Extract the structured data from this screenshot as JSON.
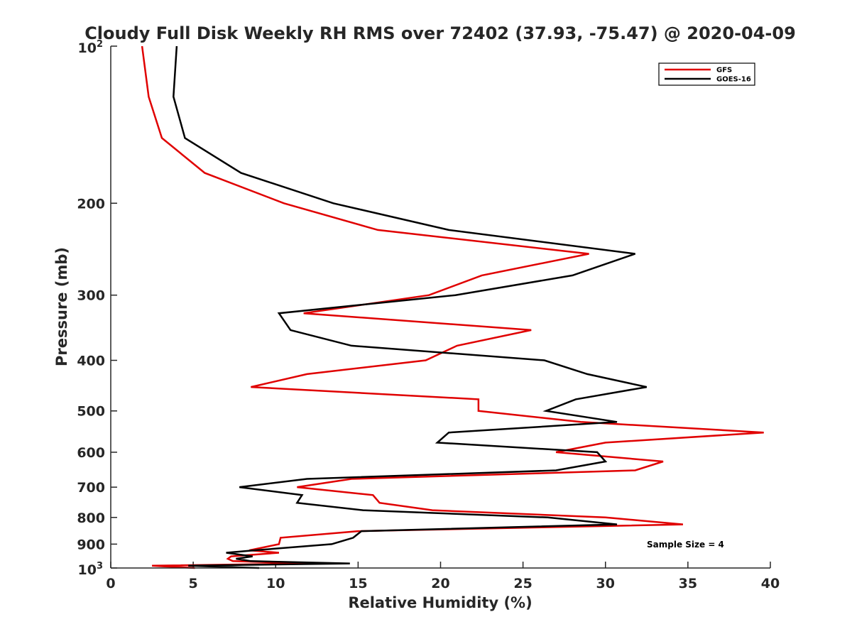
{
  "chart_data": {
    "type": "line",
    "title": "Cloudy Full Disk Weekly RH RMS over 72402 (37.93, -75.47) @ 2020-04-09",
    "xlabel": "Relative Humidity (%)",
    "ylabel": "Pressure (mb)",
    "xlim": [
      0,
      40
    ],
    "ylim": [
      100,
      1000
    ],
    "yscale": "log",
    "y_reversed": true,
    "grid": false,
    "legend_position": "top-right",
    "x_ticks": [
      "0",
      "5",
      "10",
      "15",
      "20",
      "25",
      "30",
      "35",
      "40"
    ],
    "y_ticks": [
      {
        "value": 100,
        "base": "10",
        "exp": "2"
      },
      {
        "value": 200,
        "label": "200"
      },
      {
        "value": 300,
        "label": "300"
      },
      {
        "value": 400,
        "label": "400"
      },
      {
        "value": 500,
        "label": "500"
      },
      {
        "value": 600,
        "label": "600"
      },
      {
        "value": 700,
        "label": "700"
      },
      {
        "value": 800,
        "label": "800"
      },
      {
        "value": 900,
        "label": "900"
      },
      {
        "value": 1000,
        "base": "10",
        "exp": "3"
      }
    ],
    "annotation": "Sample Size = 4",
    "series": [
      {
        "name": "GFS",
        "color": "#e00000",
        "points": [
          [
            1.9,
            100
          ],
          [
            2.3,
            125
          ],
          [
            3.1,
            150
          ],
          [
            5.7,
            175
          ],
          [
            10.5,
            200
          ],
          [
            16.2,
            225
          ],
          [
            29.0,
            250
          ],
          [
            22.5,
            275
          ],
          [
            19.3,
            300
          ],
          [
            11.7,
            325
          ],
          [
            25.5,
            350
          ],
          [
            21.0,
            375
          ],
          [
            19.1,
            400
          ],
          [
            11.9,
            425
          ],
          [
            8.5,
            450
          ],
          [
            22.3,
            475
          ],
          [
            22.3,
            500
          ],
          [
            28.5,
            525
          ],
          [
            39.6,
            550
          ],
          [
            30.0,
            575
          ],
          [
            27.0,
            600
          ],
          [
            33.5,
            625
          ],
          [
            31.8,
            650
          ],
          [
            14.6,
            675
          ],
          [
            11.3,
            700
          ],
          [
            15.9,
            725
          ],
          [
            16.3,
            750
          ],
          [
            19.5,
            775
          ],
          [
            30.0,
            800
          ],
          [
            34.7,
            825
          ],
          [
            15.0,
            850
          ],
          [
            10.3,
            875
          ],
          [
            10.2,
            900
          ],
          [
            8.4,
            925
          ],
          [
            10.2,
            935
          ],
          [
            7.3,
            950
          ],
          [
            7.1,
            960
          ],
          [
            7.4,
            970
          ],
          [
            11.9,
            980
          ],
          [
            2.5,
            990
          ],
          [
            5.1,
            1000
          ]
        ]
      },
      {
        "name": "GOES-16",
        "color": "#000000",
        "points": [
          [
            4.0,
            100
          ],
          [
            3.8,
            125
          ],
          [
            4.5,
            150
          ],
          [
            7.9,
            175
          ],
          [
            13.5,
            200
          ],
          [
            20.5,
            225
          ],
          [
            31.8,
            250
          ],
          [
            28.0,
            275
          ],
          [
            20.9,
            300
          ],
          [
            10.2,
            325
          ],
          [
            10.9,
            350
          ],
          [
            14.6,
            375
          ],
          [
            26.3,
            400
          ],
          [
            28.9,
            425
          ],
          [
            32.5,
            450
          ],
          [
            28.2,
            475
          ],
          [
            26.4,
            500
          ],
          [
            30.7,
            525
          ],
          [
            20.5,
            550
          ],
          [
            19.8,
            575
          ],
          [
            29.5,
            600
          ],
          [
            30.0,
            625
          ],
          [
            27.0,
            650
          ],
          [
            11.9,
            675
          ],
          [
            7.8,
            700
          ],
          [
            11.6,
            725
          ],
          [
            11.3,
            750
          ],
          [
            15.3,
            775
          ],
          [
            26.5,
            800
          ],
          [
            30.7,
            825
          ],
          [
            15.2,
            850
          ],
          [
            14.7,
            875
          ],
          [
            13.4,
            900
          ],
          [
            8.7,
            925
          ],
          [
            7.0,
            935
          ],
          [
            8.6,
            950
          ],
          [
            7.6,
            960
          ],
          [
            8.5,
            970
          ],
          [
            14.5,
            980
          ],
          [
            4.7,
            990
          ],
          [
            9.0,
            1000
          ]
        ]
      }
    ]
  }
}
